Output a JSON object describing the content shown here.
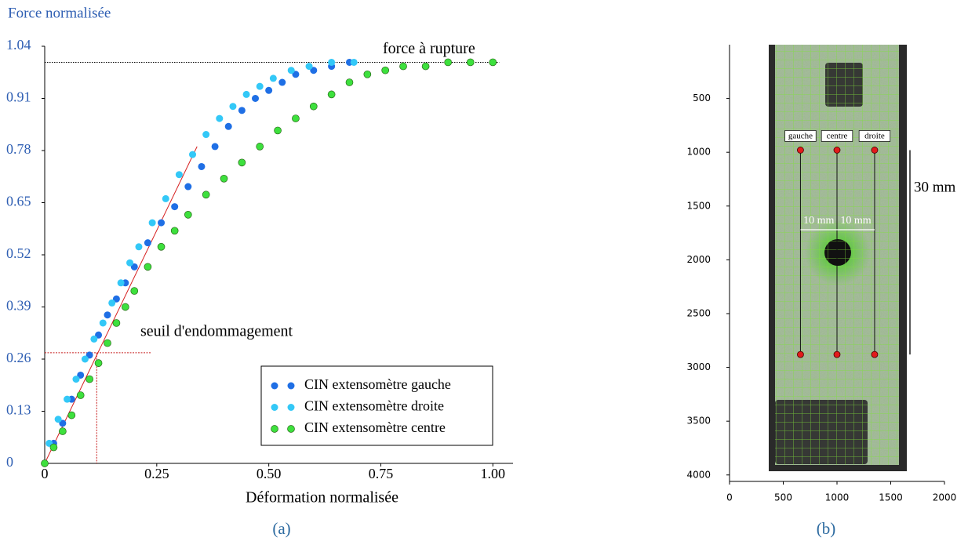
{
  "chart_data": [
    {
      "type": "scatter",
      "y_label": "Force normalisée",
      "x_label": "Déformation normalisée",
      "caption": "(a)",
      "xlim": [
        0,
        1.045
      ],
      "xticks": [
        0,
        0.25,
        {
          "value": 0.5,
          "label": "0.50"
        },
        0.75,
        {
          "value": 1,
          "label": "1.00"
        }
      ],
      "ylim": [
        0,
        1.04
      ],
      "yticks": [
        0,
        0.13,
        0.26,
        0.39,
        0.52,
        0.65,
        0.78,
        0.91,
        1.04
      ],
      "legend": "lower right",
      "series": [
        {
          "name": "CIN extensomètre gauche",
          "color": "#1f6fe5",
          "x": [
            0,
            0.02,
            0.04,
            0.06,
            0.08,
            0.1,
            0.12,
            0.14,
            0.16,
            0.18,
            0.2,
            0.23,
            0.26,
            0.29,
            0.32,
            0.35,
            0.38,
            0.41,
            0.44,
            0.47,
            0.5,
            0.53,
            0.56,
            0.6,
            0.64,
            0.68
          ],
          "values": [
            0,
            0.05,
            0.1,
            0.16,
            0.22,
            0.27,
            0.32,
            0.37,
            0.41,
            0.45,
            0.49,
            0.55,
            0.6,
            0.64,
            0.69,
            0.74,
            0.79,
            0.84,
            0.88,
            0.91,
            0.93,
            0.95,
            0.97,
            0.98,
            0.99,
            1.0
          ]
        },
        {
          "name": "CIN extensomètre droite",
          "color": "#33c8f7",
          "x": [
            0.01,
            0.03,
            0.05,
            0.07,
            0.09,
            0.11,
            0.13,
            0.15,
            0.17,
            0.19,
            0.21,
            0.24,
            0.27,
            0.3,
            0.33,
            0.36,
            0.39,
            0.42,
            0.45,
            0.48,
            0.51,
            0.55,
            0.59,
            0.64,
            0.69
          ],
          "values": [
            0.05,
            0.11,
            0.16,
            0.21,
            0.26,
            0.31,
            0.35,
            0.4,
            0.45,
            0.5,
            0.54,
            0.6,
            0.66,
            0.72,
            0.77,
            0.82,
            0.86,
            0.89,
            0.92,
            0.94,
            0.96,
            0.98,
            0.99,
            1.0,
            1.0
          ]
        },
        {
          "name": "CIN extensomètre centre",
          "color": "#3de03d",
          "x": [
            0,
            0.02,
            0.04,
            0.06,
            0.08,
            0.1,
            0.12,
            0.14,
            0.16,
            0.18,
            0.2,
            0.23,
            0.26,
            0.29,
            0.32,
            0.36,
            0.4,
            0.44,
            0.48,
            0.52,
            0.56,
            0.6,
            0.64,
            0.68,
            0.72,
            0.76,
            0.8,
            0.85,
            0.9,
            0.95,
            1.0
          ],
          "values": [
            0,
            0.04,
            0.08,
            0.12,
            0.17,
            0.21,
            0.25,
            0.3,
            0.35,
            0.39,
            0.43,
            0.49,
            0.54,
            0.58,
            0.62,
            0.67,
            0.71,
            0.75,
            0.79,
            0.83,
            0.86,
            0.89,
            0.92,
            0.95,
            0.97,
            0.98,
            0.99,
            0.99,
            1.0,
            1.0,
            1.0
          ]
        }
      ],
      "annotations": [
        {
          "text": "force à rupture",
          "y": 1.0
        },
        {
          "text": "seuil d'endommagement",
          "x": 0.116,
          "y": 0.276
        }
      ],
      "tangent": {
        "x": [
          0,
          0.34
        ],
        "y": [
          0,
          0.79
        ],
        "color": "#d62020"
      }
    },
    {
      "type": "image",
      "caption": "(b)",
      "xlim": [
        0,
        2000
      ],
      "xticks": [
        0,
        500,
        1000,
        1500,
        2000
      ],
      "ylim": [
        0,
        4060
      ],
      "y_inverted": true,
      "yticks": [
        500,
        1000,
        1500,
        2000,
        2500,
        3000,
        3500,
        4000
      ],
      "extensometers": [
        {
          "name": "gauche",
          "x": [
            660,
            660
          ],
          "y": [
            980,
            2880
          ]
        },
        {
          "name": "centre",
          "x": [
            1000,
            1000
          ],
          "y": [
            980,
            2880
          ]
        },
        {
          "name": "droite",
          "x": [
            1350,
            1350
          ],
          "y": [
            980,
            2880
          ]
        }
      ],
      "dimensions": [
        "10 mm",
        "10 mm",
        "30 mm"
      ]
    }
  ]
}
